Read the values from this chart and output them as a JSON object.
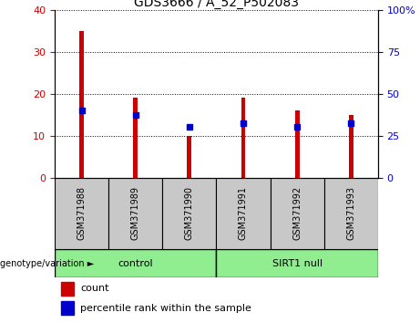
{
  "title": "GDS3666 / A_52_P502083",
  "categories": [
    "GSM371988",
    "GSM371989",
    "GSM371990",
    "GSM371991",
    "GSM371992",
    "GSM371993"
  ],
  "count_values": [
    35,
    19,
    10,
    19,
    16,
    15
  ],
  "percentile_values": [
    40,
    37.5,
    30,
    32.5,
    30,
    32.5
  ],
  "left_ylim": [
    0,
    40
  ],
  "right_ylim": [
    0,
    100
  ],
  "left_yticks": [
    0,
    10,
    20,
    30,
    40
  ],
  "right_yticks": [
    0,
    25,
    50,
    75,
    100
  ],
  "right_yticklabels": [
    "0",
    "25",
    "50",
    "75",
    "100%"
  ],
  "bar_color": "#cc0000",
  "marker_color": "#0000cc",
  "bar_width": 0.08,
  "groups": [
    {
      "label": "control",
      "start": 0,
      "end": 3
    },
    {
      "label": "SIRT1 null",
      "start": 3,
      "end": 6
    }
  ],
  "group_bg_color": "#90ee90",
  "sample_bg_color": "#c8c8c8",
  "group_label_text": "genotype/variation ►",
  "legend_count_label": "count",
  "legend_percentile_label": "percentile rank within the sample",
  "title_fontsize": 10,
  "tick_fontsize": 8,
  "label_fontsize": 8,
  "sample_fontsize": 7
}
